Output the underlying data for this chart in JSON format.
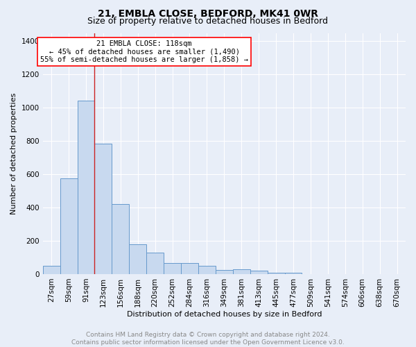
{
  "title": "21, EMBLA CLOSE, BEDFORD, MK41 0WR",
  "subtitle": "Size of property relative to detached houses in Bedford",
  "xlabel": "Distribution of detached houses by size in Bedford",
  "ylabel": "Number of detached properties",
  "annotation_line1": "21 EMBLA CLOSE: 118sqm",
  "annotation_line2": "← 45% of detached houses are smaller (1,490)",
  "annotation_line3": "55% of semi-detached houses are larger (1,858) →",
  "categories": [
    "27sqm",
    "59sqm",
    "91sqm",
    "123sqm",
    "156sqm",
    "188sqm",
    "220sqm",
    "252sqm",
    "284sqm",
    "316sqm",
    "349sqm",
    "381sqm",
    "413sqm",
    "445sqm",
    "477sqm",
    "509sqm",
    "541sqm",
    "574sqm",
    "606sqm",
    "638sqm",
    "670sqm"
  ],
  "values": [
    50,
    575,
    1042,
    785,
    420,
    180,
    130,
    68,
    65,
    50,
    25,
    28,
    20,
    10,
    10,
    0,
    0,
    0,
    0,
    0,
    0
  ],
  "bar_color": "#c8d9ef",
  "bar_edge_color": "#6699cc",
  "bar_edge_width": 0.7,
  "red_line_x": 2.5,
  "ylim": [
    0,
    1450
  ],
  "yticks": [
    0,
    200,
    400,
    600,
    800,
    1000,
    1200,
    1400
  ],
  "bg_color": "#e8eef8",
  "plot_bg_color": "#e8eef8",
  "grid_color": "#ffffff",
  "footer_text": "Contains HM Land Registry data © Crown copyright and database right 2024.\nContains public sector information licensed under the Open Government Licence v3.0.",
  "title_fontsize": 10,
  "subtitle_fontsize": 9,
  "xlabel_fontsize": 8,
  "ylabel_fontsize": 8,
  "tick_fontsize": 7.5,
  "annotation_fontsize": 7.5,
  "footer_fontsize": 6.5
}
